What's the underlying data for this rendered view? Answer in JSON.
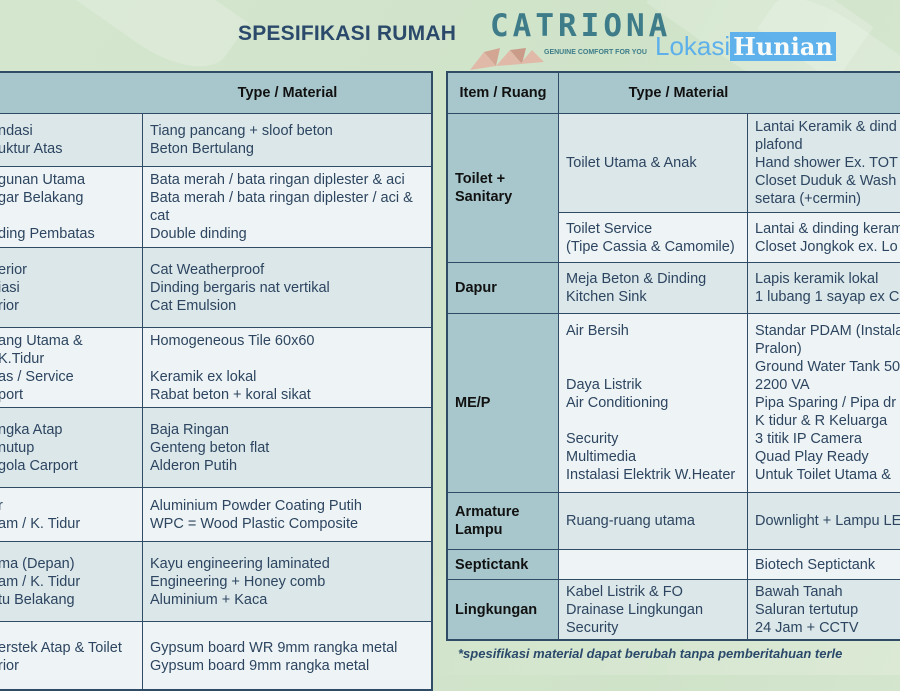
{
  "header": {
    "title": "SPESIFIKASI RUMAH",
    "logo_text": "CATRIONA",
    "logo_tagline": "GENUINE COMFORT FOR YOU"
  },
  "colors": {
    "title": "#2b4a6b",
    "header_cell": "#a7c7cc",
    "row_dark": "#dbe7e9",
    "row_light": "#eef4f5",
    "border": "#2f4b66",
    "background": "#cfe3c9"
  },
  "left_table": {
    "header": "Type / Material",
    "rows": [
      {
        "item": "ndasi\nuktur Atas",
        "material": "Tiang pancang + sloof beton\nBeton Bertulang"
      },
      {
        "item": "gunan Utama\ngar Belakang\n\nding Pembatas",
        "material": "Bata merah / bata ringan diplester & aci\nBata merah / bata ringan diplester / aci &\ncat\nDouble dinding"
      },
      {
        "item": "erior\niasi\nrior",
        "material": "Cat Weatherproof\nDinding bergaris nat vertikal\nCat Emulsion"
      },
      {
        "item": "ang Utama &\nK.Tidur\nas / Service\nport",
        "material": "Homogeneous Tile 60x60\n\nKeramik ex lokal\nRabat beton + koral sikat"
      },
      {
        "item": "ngka Atap\nnutup\ngola Carport",
        "material": "Baja Ringan\nGenteng beton flat\nAlderon Putih"
      },
      {
        "item": "r\nam / K. Tidur",
        "material": "Aluminium Powder Coating Putih\nWPC = Wood Plastic Composite"
      },
      {
        "item": "ma (Depan)\nam / K. Tidur\ntu Belakang",
        "material": "Kayu engineering laminated\nEngineering + Honey comb\nAluminium + Kaca"
      },
      {
        "item": "erstek Atap & Toilet\nrior",
        "material": "Gypsum board WR 9mm rangka metal\nGypsum board 9mm rangka metal"
      }
    ]
  },
  "right_table": {
    "header_item": "Item / Ruang",
    "header_type": "Type / Material",
    "groups": [
      {
        "label": "Toilet +\nSanitary"
      },
      {
        "label": "Dapur"
      },
      {
        "label": "ME/P"
      },
      {
        "label": "Armature\nLampu"
      },
      {
        "label": "Septictank"
      },
      {
        "label": "Lingkungan"
      }
    ],
    "rows": [
      {
        "ruang": "Toilet Utama & Anak",
        "material": "Lantai Keramik & dind\nplafond\nHand shower Ex. TOT\nCloset Duduk & Wash\nsetara (+cermin)"
      },
      {
        "ruang": "Toilet Service\n(Tipe Cassia & Camomile)",
        "material": "Lantai & dinding keram\nCloset Jongkok ex. Lo"
      },
      {
        "ruang": "Meja Beton & Dinding\nKitchen Sink",
        "material": "Lapis keramik lokal\n1 lubang 1 sayap ex C"
      },
      {
        "ruang": "Air Bersih\n\n\nDaya Listrik\nAir Conditioning\n\nSecurity\nMultimedia\nInstalasi Elektrik W.Heater",
        "material": "Standar PDAM (Instala\nPralon)\nGround Water Tank 50\n2200 VA\nPipa Sparing / Pipa dr\nK tidur & R Keluarga\n3 titik IP Camera\nQuad Play Ready\nUntuk Toilet Utama &"
      },
      {
        "ruang": "Ruang-ruang utama",
        "material": "Downlight + Lampu LE"
      },
      {
        "ruang": "",
        "material": "Biotech Septictank"
      },
      {
        "ruang": "Kabel Listrik & FO\nDrainase Lingkungan\nSecurity",
        "material": "Bawah Tanah\nSaluran tertutup\n24 Jam + CCTV"
      }
    ]
  },
  "footnote": "*spesifikasi material dapat berubah tanpa pemberitahuan terle",
  "watermark": {
    "part1": "Lokasi",
    "part2": "Hunian"
  }
}
